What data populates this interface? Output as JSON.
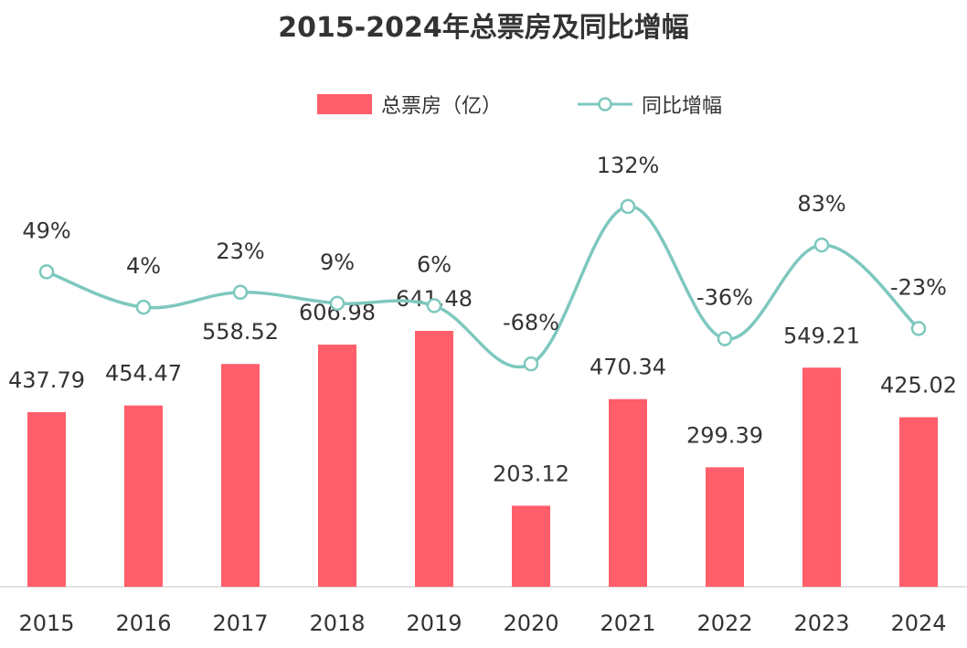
{
  "chart_data": {
    "type": "bar",
    "title": "2015-2024年总票房及同比增幅",
    "categories": [
      "2015",
      "2016",
      "2017",
      "2018",
      "2019",
      "2020",
      "2021",
      "2022",
      "2023",
      "2024"
    ],
    "series": [
      {
        "name": "总票房（亿）",
        "type": "bar",
        "values": [
          437.79,
          454.47,
          558.52,
          606.98,
          641.48,
          203.12,
          470.34,
          299.39,
          549.21,
          425.02
        ],
        "labels": [
          "437.79",
          "454.47",
          "558.52",
          "606.98",
          "641.48",
          "203.12",
          "470.34",
          "299.39",
          "549.21",
          "425.02"
        ]
      },
      {
        "name": "同比增幅",
        "type": "line",
        "values": [
          49,
          4,
          23,
          9,
          6,
          -68,
          132,
          -36,
          83,
          -23
        ],
        "labels": [
          "49%",
          "4%",
          "23%",
          "9%",
          "6%",
          "-68%",
          "132%",
          "-36%",
          "83%",
          "-23%"
        ]
      }
    ],
    "legend_position": "top-center",
    "grid": false
  },
  "colors": {
    "bar": "#ff5e6a",
    "line": "#7ec8be",
    "text": "#333333",
    "axis": "#d9d9d9"
  }
}
